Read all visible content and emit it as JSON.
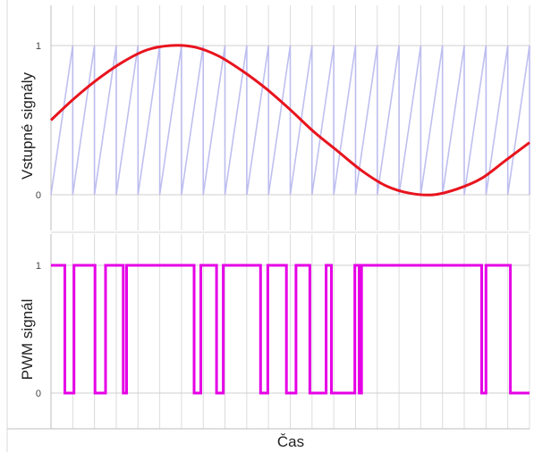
{
  "chart_data": [
    {
      "type": "line",
      "ylabel": "Vstupné signály",
      "xlabel": "",
      "yticks": [
        "0",
        "1"
      ],
      "ylim": [
        0,
        1
      ],
      "xlim": [
        0,
        1
      ],
      "carrier_teeth": 22,
      "series": [
        {
          "style": "sawtooth",
          "color": "#b8b8f0",
          "x": [
            0.0,
            0.0455,
            0.0909,
            0.1364,
            0.1818,
            0.2273,
            0.2727,
            0.3182,
            0.3636,
            0.4091,
            0.4545,
            0.5,
            0.5455,
            0.5909,
            0.6364,
            0.6818,
            0.7273,
            0.7727,
            0.8182,
            0.8636,
            0.9091,
            0.9545,
            1.0
          ]
        },
        {
          "style": "sine",
          "color": "#e8141e",
          "x": [
            0.0,
            0.05,
            0.1,
            0.15,
            0.2,
            0.25,
            0.3,
            0.35,
            0.4,
            0.45,
            0.5,
            0.55,
            0.6,
            0.65,
            0.7,
            0.75,
            0.8,
            0.85,
            0.9,
            0.95,
            1.0
          ],
          "y": [
            0.5,
            0.65,
            0.78,
            0.89,
            0.97,
            1.0,
            0.99,
            0.93,
            0.83,
            0.71,
            0.57,
            0.42,
            0.29,
            0.16,
            0.06,
            0.01,
            0.0,
            0.04,
            0.11,
            0.23,
            0.35
          ]
        }
      ]
    },
    {
      "type": "line",
      "ylabel": "PWM signál",
      "xlabel": "Čas",
      "yticks": [
        "0",
        "1"
      ],
      "ylim": [
        0,
        1
      ],
      "xlim": [
        0,
        1
      ],
      "series": [
        {
          "style": "step",
          "color": "#e600e6",
          "x": [
            0.0,
            0.029,
            0.029,
            0.048,
            0.048,
            0.092,
            0.092,
            0.114,
            0.114,
            0.151,
            0.151,
            0.158,
            0.158,
            0.202,
            0.202,
            0.299,
            0.299,
            0.313,
            0.313,
            0.346,
            0.346,
            0.36,
            0.36,
            0.438,
            0.438,
            0.453,
            0.453,
            0.492,
            0.492,
            0.512,
            0.512,
            0.541,
            0.541,
            0.575,
            0.575,
            0.586,
            0.586,
            0.635,
            0.635,
            0.644,
            0.644,
            0.649,
            0.649,
            0.9,
            0.9,
            0.909,
            0.909,
            0.96,
            0.96,
            1.0
          ],
          "y": [
            1,
            1,
            0,
            0,
            1,
            1,
            0,
            0,
            1,
            1,
            0,
            0,
            1,
            1,
            1,
            1,
            0,
            0,
            1,
            1,
            0,
            0,
            1,
            1,
            0,
            0,
            1,
            1,
            0,
            0,
            1,
            1,
            0,
            0,
            1,
            1,
            0,
            0,
            1,
            1,
            0,
            0,
            1,
            1,
            0,
            0,
            1,
            1,
            0,
            0
          ]
        }
      ]
    }
  ]
}
